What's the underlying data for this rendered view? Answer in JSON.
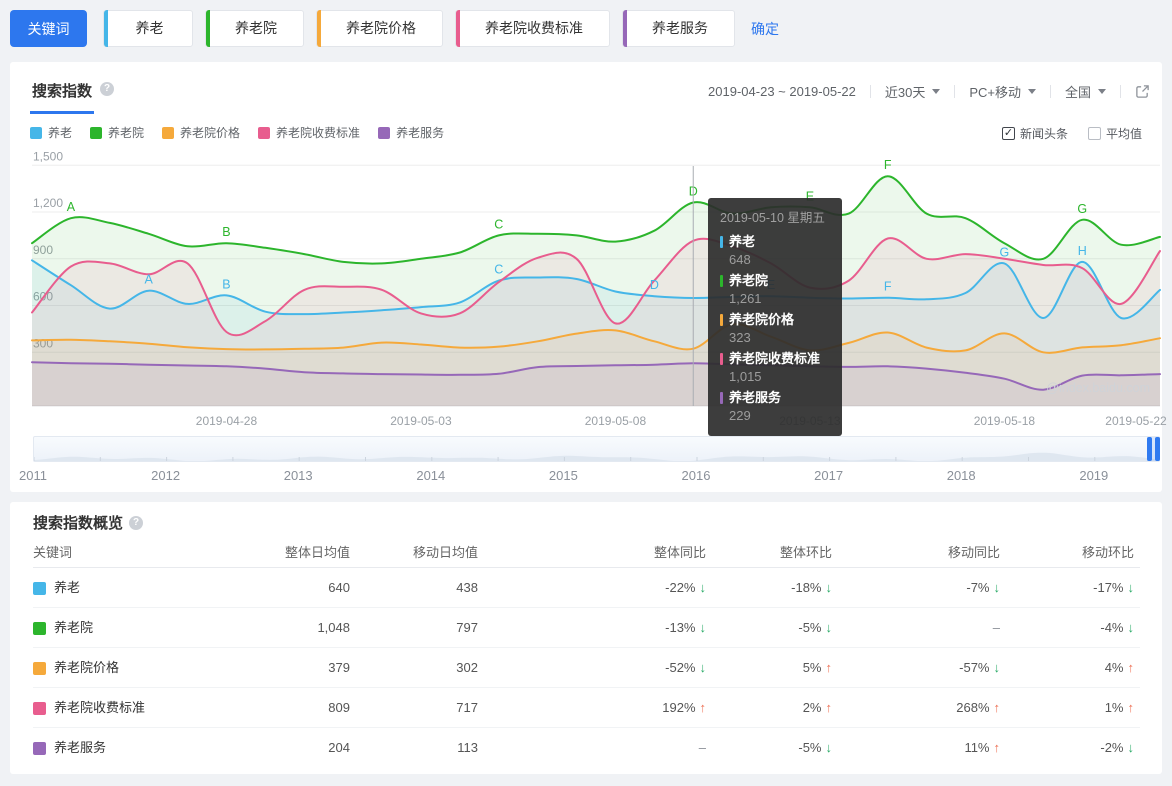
{
  "accent_color": "#2d77ee",
  "status_colors": {
    "up": "#ee7155",
    "down": "#2bab68"
  },
  "keyword_bar": {
    "keyword_button": "关键词",
    "confirm": "确定",
    "chips": [
      {
        "label": "养老",
        "color": "#45b6e8"
      },
      {
        "label": "养老院",
        "color": "#2cb52c"
      },
      {
        "label": "养老院价格",
        "color": "#f5a93b"
      },
      {
        "label": "养老院收费标准",
        "color": "#e85d8e"
      },
      {
        "label": "养老服务",
        "color": "#9668b8"
      }
    ]
  },
  "chart_panel": {
    "tab": "搜索指数",
    "date_range": "2019-04-23 ~ 2019-05-22",
    "period_select": "近30天",
    "device_select": "PC+移动",
    "region_select": "全国",
    "news_checkbox": {
      "label": "新闻头条",
      "checked": true
    },
    "average_checkbox": {
      "label": "平均值",
      "checked": false
    },
    "watermark": "@index.baidu.com",
    "tooltip": {
      "date": "2019-05-10 星期五",
      "items": [
        {
          "name": "养老",
          "value": "648"
        },
        {
          "name": "养老院",
          "value": "1,261"
        },
        {
          "name": "养老院价格",
          "value": "323"
        },
        {
          "name": "养老院收费标准",
          "value": "1,015"
        },
        {
          "name": "养老服务",
          "value": "229"
        }
      ]
    }
  },
  "chart_data": {
    "type": "line",
    "title": "搜索指数",
    "x_axis": {
      "start": "2019-04-23",
      "end": "2019-05-22",
      "days": 30,
      "tick_labels": [
        {
          "label": "2019-04-28",
          "day": 5
        },
        {
          "label": "2019-05-03",
          "day": 10
        },
        {
          "label": "2019-05-08",
          "day": 15
        },
        {
          "label": "2019-05-13",
          "day": 20
        },
        {
          "label": "2019-05-18",
          "day": 25
        },
        {
          "label": "2019-05-22",
          "day": 29
        }
      ]
    },
    "y_axis": {
      "min": 0,
      "max": 1500,
      "grid": true,
      "ticks": [
        {
          "value": 300,
          "label": "300"
        },
        {
          "value": 600,
          "label": "600"
        },
        {
          "value": 900,
          "label": "900"
        },
        {
          "value": 1200,
          "label": "1,200"
        },
        {
          "value": 1500,
          "label": "1,500"
        }
      ]
    },
    "hover_day": 17,
    "series": [
      {
        "name": "养老",
        "color": "#45b6e8",
        "values": [
          890,
          730,
          580,
          695,
          610,
          665,
          560,
          545,
          555,
          570,
          590,
          620,
          760,
          780,
          770,
          690,
          660,
          648,
          655,
          660,
          650,
          645,
          650,
          640,
          680,
          870,
          520,
          880,
          520,
          700
        ],
        "news_markers": [
          {
            "letter": "A",
            "day": 3
          },
          {
            "letter": "B",
            "day": 5
          },
          {
            "letter": "C",
            "day": 12
          },
          {
            "letter": "D",
            "day": 16
          },
          {
            "letter": "E",
            "day": 19
          },
          {
            "letter": "F",
            "day": 22
          },
          {
            "letter": "G",
            "day": 25
          },
          {
            "letter": "H",
            "day": 27
          }
        ]
      },
      {
        "name": "养老院",
        "color": "#2cb52c",
        "values": [
          1000,
          1160,
          1130,
          1060,
          980,
          1000,
          970,
          930,
          880,
          870,
          900,
          940,
          1050,
          1060,
          1050,
          1010,
          1080,
          1261,
          1190,
          1230,
          1230,
          1190,
          1430,
          1190,
          1160,
          1000,
          900,
          1150,
          990,
          1040
        ],
        "news_markers": [
          {
            "letter": "A",
            "day": 1
          },
          {
            "letter": "B",
            "day": 5
          },
          {
            "letter": "C",
            "day": 12
          },
          {
            "letter": "D",
            "day": 17
          },
          {
            "letter": "E",
            "day": 20
          },
          {
            "letter": "F",
            "day": 22
          },
          {
            "letter": "G",
            "day": 27
          }
        ]
      },
      {
        "name": "养老院价格",
        "color": "#f5a93b",
        "values": [
          376,
          380,
          370,
          355,
          332,
          320,
          318,
          322,
          330,
          362,
          350,
          330,
          336,
          370,
          420,
          440,
          370,
          323,
          480,
          400,
          312,
          360,
          427,
          330,
          312,
          421,
          300,
          331,
          345,
          390
        ],
        "news_markers": []
      },
      {
        "name": "养老院收费标准",
        "color": "#e85d8e",
        "values": [
          555,
          850,
          870,
          800,
          870,
          430,
          500,
          700,
          720,
          700,
          549,
          550,
          750,
          906,
          900,
          485,
          760,
          1015,
          980,
          870,
          715,
          760,
          1030,
          900,
          930,
          900,
          860,
          840,
          610,
          950
        ],
        "news_markers": []
      },
      {
        "name": "养老服务",
        "color": "#9668b8",
        "values": [
          236,
          230,
          226,
          220,
          215,
          210,
          195,
          172,
          164,
          160,
          157,
          155,
          162,
          205,
          212,
          216,
          220,
          229,
          222,
          216,
          210,
          206,
          210,
          195,
          168,
          130,
          60,
          150,
          152,
          160
        ],
        "news_markers": []
      }
    ]
  },
  "timeline": {
    "years": [
      "2011",
      "2012",
      "2013",
      "2014",
      "2015",
      "2016",
      "2017",
      "2018",
      "2019"
    ]
  },
  "overview": {
    "title": "搜索指数概览",
    "columns": [
      "关键词",
      "整体日均值",
      "移动日均值",
      "整体同比",
      "整体环比",
      "移动同比",
      "移动环比"
    ],
    "rows": [
      {
        "keyword": "养老",
        "color": "#45b6e8",
        "overall_avg": "640",
        "mobile_avg": "438",
        "changes": [
          {
            "text": "-22%",
            "dir": "down"
          },
          {
            "text": "-18%",
            "dir": "down"
          },
          {
            "text": "-7%",
            "dir": "down"
          },
          {
            "text": "-17%",
            "dir": "down"
          }
        ]
      },
      {
        "keyword": "养老院",
        "color": "#2cb52c",
        "overall_avg": "1,048",
        "mobile_avg": "797",
        "changes": [
          {
            "text": "-13%",
            "dir": "down"
          },
          {
            "text": "-5%",
            "dir": "down"
          },
          {
            "text": "–",
            "dir": null
          },
          {
            "text": "-4%",
            "dir": "down"
          }
        ]
      },
      {
        "keyword": "养老院价格",
        "color": "#f5a93b",
        "overall_avg": "379",
        "mobile_avg": "302",
        "changes": [
          {
            "text": "-52%",
            "dir": "down"
          },
          {
            "text": "5%",
            "dir": "up"
          },
          {
            "text": "-57%",
            "dir": "down"
          },
          {
            "text": "4%",
            "dir": "up"
          }
        ]
      },
      {
        "keyword": "养老院收费标准",
        "color": "#e85d8e",
        "overall_avg": "809",
        "mobile_avg": "717",
        "changes": [
          {
            "text": "192%",
            "dir": "up"
          },
          {
            "text": "2%",
            "dir": "up"
          },
          {
            "text": "268%",
            "dir": "up"
          },
          {
            "text": "1%",
            "dir": "up"
          }
        ]
      },
      {
        "keyword": "养老服务",
        "color": "#9668b8",
        "overall_avg": "204",
        "mobile_avg": "113",
        "changes": [
          {
            "text": "–",
            "dir": null
          },
          {
            "text": "-5%",
            "dir": "down"
          },
          {
            "text": "11%",
            "dir": "up"
          },
          {
            "text": "-2%",
            "dir": "down"
          }
        ]
      }
    ]
  }
}
